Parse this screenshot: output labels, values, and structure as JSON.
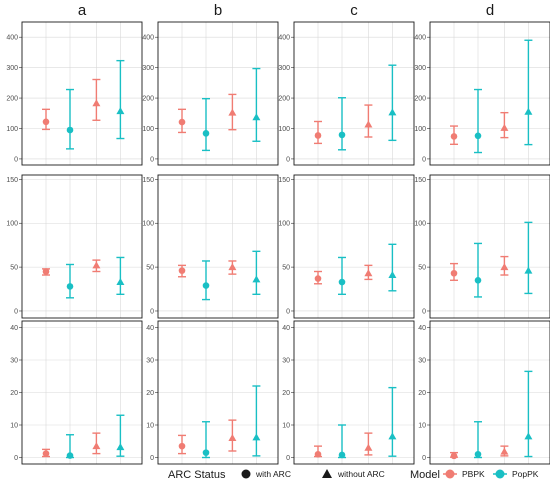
{
  "colors": {
    "PBPK": "#f07c73",
    "PopPK": "#19bfc4",
    "grid": "#d9d9d9",
    "panel_border": "#1a1a1a"
  },
  "chart_data": {
    "type": "scatter",
    "subtype": "point-range with error bars, 3x4 facet grid",
    "columns": [
      "a",
      "b",
      "c",
      "d"
    ],
    "grid": true,
    "legend_position": "bottom",
    "x_order": [
      {
        "arc": "with ARC",
        "model": "PBPK"
      },
      {
        "arc": "with ARC",
        "model": "PopPK"
      },
      {
        "arc": "without ARC",
        "model": "PBPK"
      },
      {
        "arc": "without ARC",
        "model": "PopPK"
      }
    ],
    "rows": [
      {
        "ylim": [
          -20,
          450
        ],
        "ticks": [
          0,
          100,
          200,
          300,
          400
        ],
        "panels": [
          [
            {
              "mid": 122,
              "lo": 97,
              "hi": 163
            },
            {
              "mid": 95,
              "lo": 33,
              "hi": 228
            },
            {
              "mid": 183,
              "lo": 127,
              "hi": 261
            },
            {
              "mid": 157,
              "lo": 67,
              "hi": 323
            }
          ],
          [
            {
              "mid": 121,
              "lo": 87,
              "hi": 163
            },
            {
              "mid": 84,
              "lo": 28,
              "hi": 198
            },
            {
              "mid": 152,
              "lo": 96,
              "hi": 212
            },
            {
              "mid": 137,
              "lo": 58,
              "hi": 297
            }
          ],
          [
            {
              "mid": 77,
              "lo": 51,
              "hi": 123
            },
            {
              "mid": 79,
              "lo": 30,
              "hi": 201
            },
            {
              "mid": 113,
              "lo": 72,
              "hi": 177
            },
            {
              "mid": 153,
              "lo": 61,
              "hi": 308
            }
          ],
          [
            {
              "mid": 74,
              "lo": 48,
              "hi": 108
            },
            {
              "mid": 76,
              "lo": 21,
              "hi": 228
            },
            {
              "mid": 102,
              "lo": 70,
              "hi": 152
            },
            {
              "mid": 155,
              "lo": 47,
              "hi": 390
            }
          ]
        ]
      },
      {
        "ylim": [
          -8,
          155
        ],
        "ticks": [
          0,
          50,
          100,
          150
        ],
        "panels": [
          [
            {
              "mid": 45,
              "lo": 41,
              "hi": 48
            },
            {
              "mid": 28,
              "lo": 15,
              "hi": 53
            },
            {
              "mid": 52,
              "lo": 45,
              "hi": 58
            },
            {
              "mid": 33,
              "lo": 19,
              "hi": 61
            }
          ],
          [
            {
              "mid": 46,
              "lo": 39,
              "hi": 52
            },
            {
              "mid": 29,
              "lo": 13,
              "hi": 57
            },
            {
              "mid": 50,
              "lo": 42,
              "hi": 57
            },
            {
              "mid": 36,
              "lo": 19,
              "hi": 68
            }
          ],
          [
            {
              "mid": 37,
              "lo": 31,
              "hi": 45
            },
            {
              "mid": 33,
              "lo": 19,
              "hi": 61
            },
            {
              "mid": 43,
              "lo": 36,
              "hi": 52
            },
            {
              "mid": 41,
              "lo": 23,
              "hi": 76
            }
          ],
          [
            {
              "mid": 43,
              "lo": 35,
              "hi": 54
            },
            {
              "mid": 35,
              "lo": 16,
              "hi": 77
            },
            {
              "mid": 50,
              "lo": 41,
              "hi": 62
            },
            {
              "mid": 46,
              "lo": 20,
              "hi": 101
            }
          ]
        ]
      },
      {
        "ylim": [
          -2,
          42
        ],
        "ticks": [
          0,
          10,
          20,
          30,
          40
        ],
        "panels": [
          [
            {
              "mid": 1.2,
              "lo": 0.3,
              "hi": 2.5
            },
            {
              "mid": 0.6,
              "lo": 0.0,
              "hi": 7.0
            },
            {
              "mid": 3.5,
              "lo": 1.2,
              "hi": 7.5
            },
            {
              "mid": 3.2,
              "lo": 0.4,
              "hi": 13.0
            }
          ],
          [
            {
              "mid": 3.5,
              "lo": 1.2,
              "hi": 6.8
            },
            {
              "mid": 1.5,
              "lo": 0.0,
              "hi": 11.0
            },
            {
              "mid": 6.0,
              "lo": 2.0,
              "hi": 11.5
            },
            {
              "mid": 6.2,
              "lo": 0.5,
              "hi": 22.0
            }
          ],
          [
            {
              "mid": 1.0,
              "lo": 0.3,
              "hi": 3.5
            },
            {
              "mid": 0.8,
              "lo": 0.0,
              "hi": 10.0
            },
            {
              "mid": 3.0,
              "lo": 0.8,
              "hi": 7.5
            },
            {
              "mid": 6.5,
              "lo": 0.4,
              "hi": 21.5
            }
          ],
          [
            {
              "mid": 0.5,
              "lo": 0.1,
              "hi": 1.5
            },
            {
              "mid": 1.0,
              "lo": 0.0,
              "hi": 11.0
            },
            {
              "mid": 1.8,
              "lo": 0.5,
              "hi": 3.5
            },
            {
              "mid": 6.5,
              "lo": 0.3,
              "hi": 26.5
            }
          ]
        ]
      }
    ]
  },
  "legend": {
    "arc_title": "ARC Status",
    "arc_items": [
      {
        "label": "with ARC",
        "shape": "circle"
      },
      {
        "label": "without ARC",
        "shape": "triangle"
      }
    ],
    "model_title": "Model",
    "model_items": [
      {
        "label": "PBPK",
        "color_key": "PBPK"
      },
      {
        "label": "PopPK",
        "color_key": "PopPK"
      }
    ]
  }
}
